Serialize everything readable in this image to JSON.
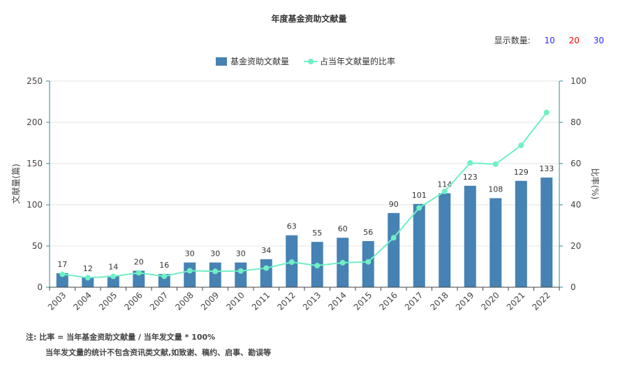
{
  "title": "年度基金资助文献量",
  "display_count": {
    "label": "显示数量:",
    "options": [
      "10",
      "20",
      "30"
    ]
  },
  "notes": {
    "line1": "注:  比率 = 当年基金资助文献量 / 当年发文量 * 100%",
    "line2": "当年发文量的统计不包含资讯类文献,如致谢、稿约、启事、勘误等"
  },
  "colors": {
    "bar": "#4682b4",
    "line": "#6ff0c4",
    "axis": "#2c8a9a"
  },
  "chart_data": {
    "type": "bar",
    "title": "年度基金资助文献量",
    "categories": [
      "2003",
      "2004",
      "2005",
      "2006",
      "2007",
      "2008",
      "2009",
      "2010",
      "2011",
      "2012",
      "2013",
      "2014",
      "2015",
      "2016",
      "2017",
      "2018",
      "2019",
      "2020",
      "2021",
      "2022"
    ],
    "series": [
      {
        "name": "基金资助文献量",
        "type": "bar",
        "axis": "left",
        "values": [
          17,
          12,
          14,
          20,
          16,
          30,
          30,
          30,
          34,
          63,
          55,
          60,
          56,
          90,
          101,
          114,
          123,
          108,
          129,
          133
        ]
      },
      {
        "name": "占当年文献量的比率",
        "type": "line",
        "axis": "right",
        "values": [
          6.3,
          4.6,
          5.3,
          7.0,
          5.3,
          8.0,
          7.7,
          7.9,
          9.3,
          12.2,
          10.5,
          11.9,
          12.3,
          24.0,
          38.5,
          46.5,
          60.3,
          59.7,
          68.8,
          84.8
        ]
      }
    ],
    "ylabel": "文献量(篇)",
    "y2label": "比率(%)",
    "ylim": [
      0,
      250
    ],
    "y2lim": [
      0,
      100
    ],
    "yticks": [
      "0",
      "50",
      "100",
      "150",
      "200",
      "250"
    ],
    "y2ticks": [
      "0",
      "20",
      "40",
      "60",
      "80",
      "100"
    ],
    "grid": true,
    "legend": "top-center"
  }
}
